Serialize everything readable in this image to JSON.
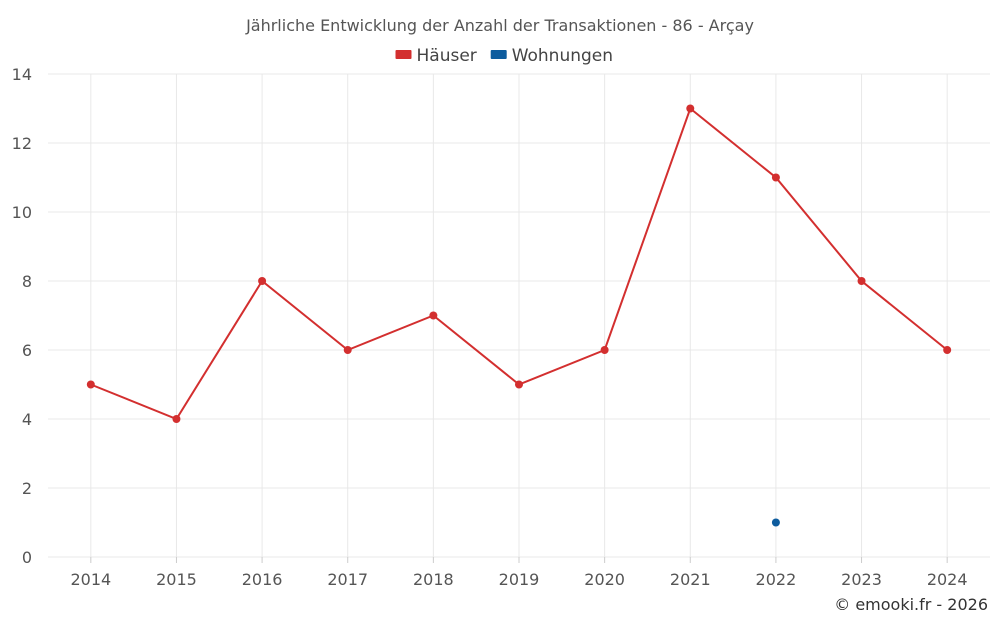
{
  "chart_data": {
    "type": "line",
    "title": "Jährliche Entwicklung der Anzahl der Transaktionen - 86 - Arçay",
    "xlabel": "",
    "ylabel": "",
    "categories": [
      "2014",
      "2015",
      "2016",
      "2017",
      "2018",
      "2019",
      "2020",
      "2021",
      "2022",
      "2023",
      "2024"
    ],
    "ylim": [
      0,
      14
    ],
    "yticks": [
      0,
      2,
      4,
      6,
      8,
      10,
      12,
      14
    ],
    "grid": true,
    "legend_position": "top-center",
    "series": [
      {
        "name": "Häuser",
        "color": "#d32f2f",
        "values": [
          5,
          4,
          8,
          6,
          7,
          5,
          6,
          13,
          11,
          8,
          6
        ]
      },
      {
        "name": "Wohnungen",
        "color": "#0d5c9e",
        "values": [
          null,
          null,
          null,
          null,
          null,
          null,
          null,
          null,
          1,
          null,
          null
        ]
      }
    ]
  },
  "credit": "© emooki.fr - 2026"
}
